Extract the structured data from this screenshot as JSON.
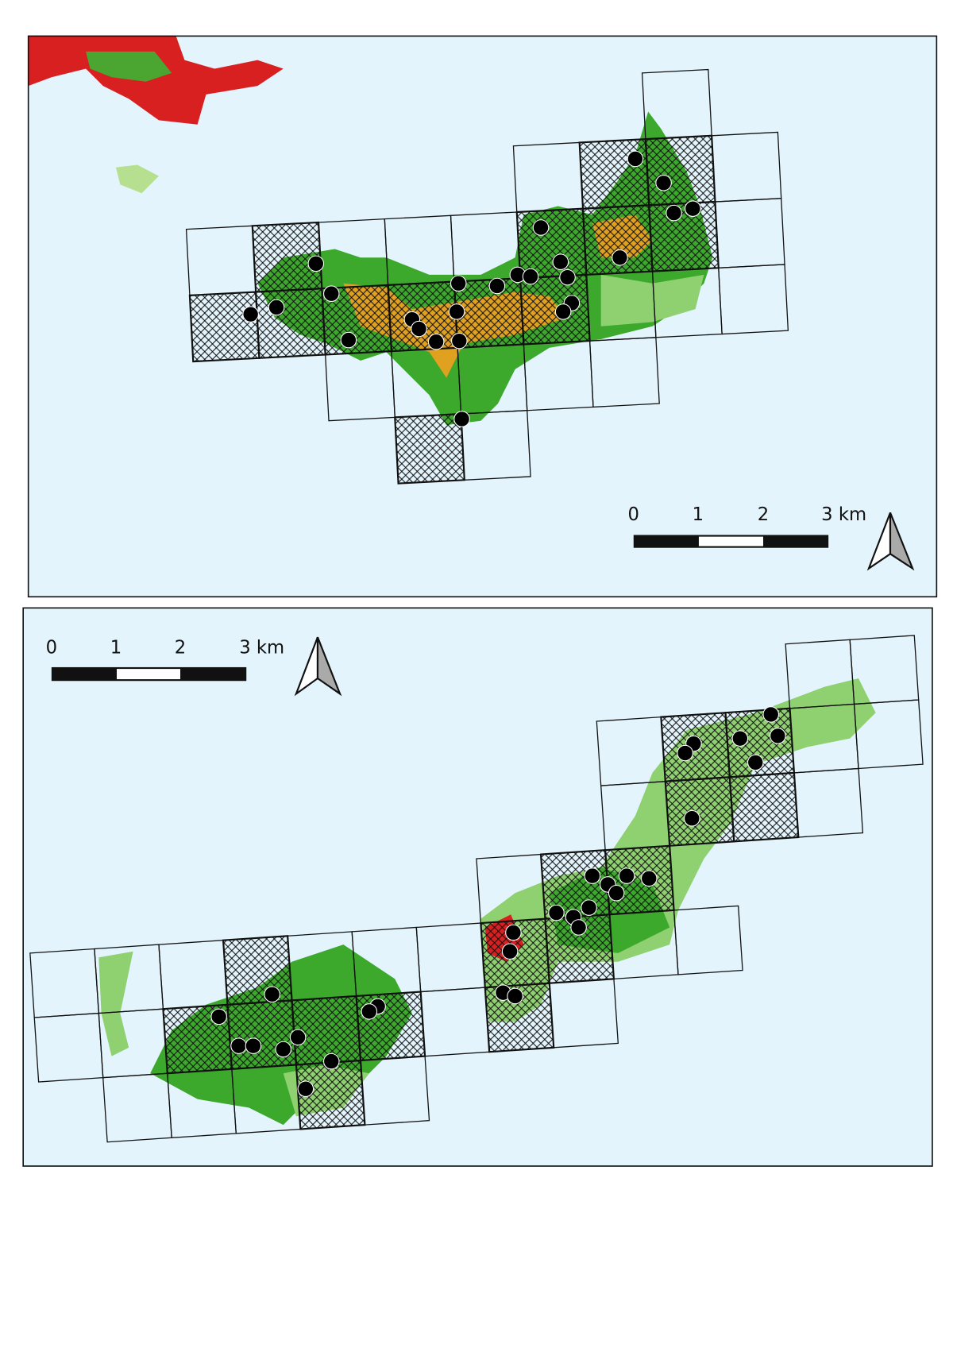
{
  "maps": [
    {
      "scale_labels": [
        "0",
        "1",
        "2",
        "3 km"
      ]
    },
    {
      "scale_labels": [
        "0",
        "1",
        "2",
        "3 km"
      ]
    }
  ]
}
